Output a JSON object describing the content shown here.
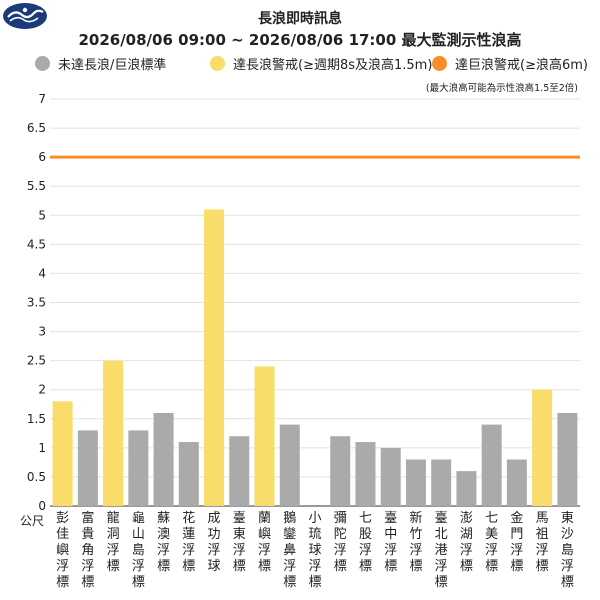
{
  "logo": {
    "icon": "cwa-logo-icon",
    "color": "#1a3a7a"
  },
  "chart_data": {
    "type": "bar",
    "title": "長浪即時訊息",
    "subtitle": "2026/08/06 09:00 ~ 2026/08/06 17:00 最大監測示性浪高",
    "note": "(最大浪高可能為示性浪高1.5至2倍)",
    "ylabel": "公尺",
    "ylim": [
      0,
      7
    ],
    "yticks": [
      "0",
      "0.5",
      "1",
      "1.5",
      "2",
      "2.5",
      "3",
      "3.5",
      "4",
      "4.5",
      "5",
      "5.5",
      "6",
      "6.5",
      "7"
    ],
    "grid": true,
    "legend_position": "top",
    "legend": [
      {
        "label": "未達長浪/巨浪標準",
        "color": "#aaaaaa"
      },
      {
        "label": "達長浪警戒(≥週期8s及浪高1.5m)",
        "color": "#f9dc6a"
      },
      {
        "label": "達巨浪警戒(≥浪高6m)",
        "color": "#fb8c2c"
      }
    ],
    "threshold": {
      "value": 6,
      "color": "#fb8c2c"
    },
    "categories": [
      "彭佳嶼浮標",
      "富貴角浮標",
      "龍洞浮標",
      "龜山島浮標",
      "蘇澳浮標",
      "花蓮浮標",
      "成功浮球",
      "臺東浮標",
      "蘭嶼浮標",
      "鵝鑾鼻浮標",
      "小琉球浮標",
      "彌陀浮標",
      "七股浮標",
      "臺中浮標",
      "新竹浮標",
      "臺北港浮標",
      "澎湖浮標",
      "七美浮標",
      "金門浮標",
      "馬祖浮標",
      "東沙島浮標"
    ],
    "values": [
      1.8,
      1.3,
      2.5,
      1.3,
      1.6,
      1.1,
      5.1,
      1.2,
      2.4,
      1.4,
      null,
      1.2,
      1.1,
      1.0,
      0.8,
      0.8,
      0.6,
      1.4,
      0.8,
      2.0,
      1.6
    ],
    "bar_colors": [
      "#f9dc6a",
      "#aaaaaa",
      "#f9dc6a",
      "#aaaaaa",
      "#aaaaaa",
      "#aaaaaa",
      "#f9dc6a",
      "#aaaaaa",
      "#f9dc6a",
      "#aaaaaa",
      "#aaaaaa",
      "#aaaaaa",
      "#aaaaaa",
      "#aaaaaa",
      "#aaaaaa",
      "#aaaaaa",
      "#aaaaaa",
      "#aaaaaa",
      "#aaaaaa",
      "#f9dc6a",
      "#aaaaaa"
    ]
  }
}
